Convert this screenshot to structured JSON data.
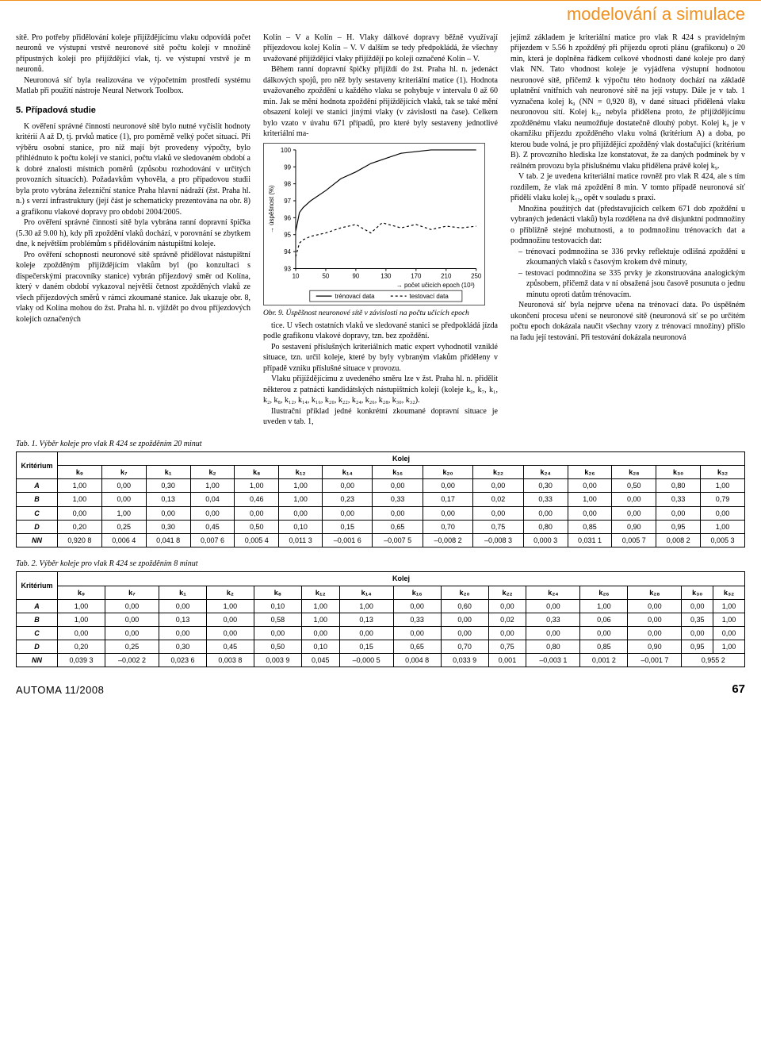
{
  "header": {
    "category": "modelování a simulace",
    "rule_color": "#f0911f"
  },
  "col1": {
    "p1": "sítě. Pro potřeby přidělování koleje přijíždějícímu vlaku odpovídá počet neuronů ve výstupní vrstvě neuronové sítě počtu kolejí v množině přípustných kolejí pro přijíždějící vlak, tj. ve výstupní vrstvě je m neuronů.",
    "p2": "Neuronová síť byla realizována ve výpočetním prostředí systému Matlab při použití nástroje Neural Network Toolbox.",
    "h3": "5. Případová studie",
    "p3": "K ověření správné činnosti neuronové sítě bylo nutné vyčíslit hodnoty kritérií A až D, tj. prvků matice (1), pro poměrně velký počet situací. Při výběru osobní stanice, pro niž mají být provedeny výpočty, bylo přihlédnuto k počtu kolejí ve stanici, počtu vlaků ve sledovaném období a k dobré znalosti místních poměrů (způsobu rozhodování v určitých provozních situacích). Požadavkům vyhověla, a pro případovou studii byla proto vybrána železniční stanice Praha hlavní nádraží (žst. Praha hl. n.) s verzí infrastruktury (její část je schematicky prezentována na obr. 8) a grafikonu vlakové dopravy pro období 2004/2005.",
    "p4": "Pro ověření správné činnosti sítě byla vybrána ranní dopravní špička (5.30 až 9.00 h), kdy při zpoždění vlaků dochází, v porovnání se zbytkem dne, k největším problémům s přidělováním nástupištní koleje.",
    "p5": "Pro ověření schopnosti neuronové sítě správně přidělovat nástupištní koleje zpožděným přijíždějícím vlakům byl (po konzultaci s dispečerskými pracovníky stanice) vybrán příjezdový směr od Kolína, který v daném období vykazoval největší četnost zpožděných vlaků ze všech příjezdových směrů v rámci zkoumané stanice. Jak ukazuje obr. 8, vlaky od Kolína mohou do žst. Praha hl. n. vjíždět po dvou příjezdových kolejích označených"
  },
  "col2": {
    "p1": "Kolín – V a Kolín – H. Vlaky dálkové dopravy běžně využívají příjezdovou kolej Kolín – V. V dalším se tedy předpokládá, že všechny uvažované přijíždějící vlaky přijíždějí po koleji označené Kolín – V.",
    "p2": "Během ranní dopravní špičky přijíždí do žst. Praha hl. n. jedenáct dálkových spojů, pro něž byly sestaveny kriteriální matice (1). Hodnota uvažovaného zpoždění u každého vlaku se pohybuje v intervalu 0 až 60 min. Jak se mění hodnota zpoždění přijíždějících vlaků, tak se také mění obsazení kolejí ve stanici jinými vlaky (v závislosti na čase). Celkem bylo vzato v úvahu 671 případů, pro které byly sestaveny jednotlivé kriteriální ma-",
    "p3": "tice. U všech ostatních vlaků ve sledované stanici se předpokládá jízda podle grafikonu vlakové dopravy, tzn. bez zpoždění.",
    "p4": "Po sestavení příslušných kriteriálních matic expert vyhodnotil vzniklé situace, tzn. určil koleje, které by byly vybraným vlakům přiděleny v případě vzniku příslušné situace v provozu.",
    "p5": "Vlaku přijíždějícímu z uvedeného směru lze v žst. Praha hl. n. přidělit některou z patnácti kandidátských nástupištních kolejí (koleje k₉, k₇, k₁, k₂, k₈, k₁₂, k₁₄, k₁₆, k₂₀, k₂₂, k₂₄, k₂₆, k₂₈, k₃₀, k₃₂).",
    "p6": "Ilustrační příklad jedné konkrétní zkoumané dopravní situace je uveden v tab. 1,"
  },
  "col3": {
    "p1": "jejímž základem je kriteriální matice pro vlak R 424 s pravidelným příjezdem v 5.56 h zpožděný při příjezdu oproti plánu (grafikonu) o 20 min, která je doplněna řádkem celkové vhodnosti dané koleje pro daný vlak NN. Tato vhodnost koleje je vyjádřena výstupní hodnotou neuronové sítě, přičemž k výpočtu této hodnoty dochází na základě uplatnění vnitřních vah neuronové sítě na její vstupy. Dále je v tab. 1 vyznačena kolej k₉ (NN = 0,920 8), v dané situaci přidělená vlaku neuronovou sítí. Kolej k₃₂ nebyla přidělena proto, že přijíždějícímu zpožděnému vlaku neumožňuje dostatečně dlouhý pobyt. Kolej k₉ je v okamžiku příjezdu zpožděného vlaku volná (kritérium A) a doba, po kterou bude volná, je pro přijíždějící zpožděný vlak dostačující (kritérium B). Z provozního hlediska lze konstatovat, že za daných podmínek by v reálném provozu byla příslušnému vlaku přidělena právě kolej k₉.",
    "p2": "V tab. 2 je uvedena kriteriální matice rovněž pro vlak R 424, ale s tím rozdílem, že vlak má zpoždění 8 min. V tomto případě neuronová síť přidělí vlaku kolej k₃₂, opět v souladu s praxí.",
    "p3": "Množina použitých dat (představujících celkem 671 dob zpoždění u vybraných jedenácti vlaků) byla rozdělena na dvě disjunktní podmnožiny o přibližně stejné mohutnosti, a to podmnožinu trénovacích dat a podmnožinu testovacích dat:",
    "li1": "trénovací podmnožina se 336 prvky reflektuje odlišná zpoždění u zkoumaných vlaků s časovým krokem dvě minuty,",
    "li2": "testovací podmnožina se 335 prvky je zkonstruována analogickým způsobem, přičemž data v ní obsažená jsou časově posunuta o jednu minutu oproti datům trénovacím.",
    "p4": "Neuronová síť byla nejprve učena na trénovací data. Po úspěšném ukončení procesu učení se neuronové sítě (neuronová síť se po určitém počtu epoch dokázala naučit všechny vzory z trénovací množiny) přišlo na řadu její testování. Při testování dokázala neuronová"
  },
  "chart": {
    "type": "line",
    "title": "",
    "ylabel": "úspěšnost (%)",
    "xlabel": "počet učicích epoch (10³)",
    "legend": {
      "train": "trénovací data",
      "test": "testovací data"
    },
    "xlim": [
      10,
      250
    ],
    "xticks": [
      10,
      50,
      90,
      130,
      170,
      210,
      250
    ],
    "ylim": [
      93,
      100
    ],
    "yticks": [
      93,
      94,
      95,
      96,
      97,
      98,
      99,
      100
    ],
    "series": {
      "train": {
        "color": "#000000",
        "dash": "none",
        "points": [
          [
            10,
            95.2
          ],
          [
            15,
            96.3
          ],
          [
            20,
            96.6
          ],
          [
            30,
            97.0
          ],
          [
            50,
            97.6
          ],
          [
            70,
            98.3
          ],
          [
            90,
            98.7
          ],
          [
            110,
            99.2
          ],
          [
            130,
            99.5
          ],
          [
            150,
            99.8
          ],
          [
            170,
            99.9
          ],
          [
            190,
            100
          ],
          [
            210,
            100
          ],
          [
            230,
            100
          ],
          [
            250,
            100
          ]
        ]
      },
      "test": {
        "color": "#000000",
        "dash": "3,3",
        "points": [
          [
            10,
            93.7
          ],
          [
            15,
            94.5
          ],
          [
            20,
            94.7
          ],
          [
            30,
            94.9
          ],
          [
            50,
            95.1
          ],
          [
            70,
            95.4
          ],
          [
            90,
            95.6
          ],
          [
            110,
            95.1
          ],
          [
            125,
            95.7
          ],
          [
            150,
            95.4
          ],
          [
            170,
            95.6
          ],
          [
            190,
            95.3
          ],
          [
            210,
            95.5
          ],
          [
            230,
            95.4
          ],
          [
            250,
            95.5
          ]
        ]
      }
    },
    "axis_color": "#000000",
    "grid_color": "#999999",
    "font_size": 8,
    "background_color": "#ffffff",
    "caption": "Obr. 9. Úspěšnost neuronové sítě v závislosti na počtu učicích epoch"
  },
  "table1": {
    "caption": "Tab. 1. Výběr koleje pro vlak R 424 se zpožděním 20 minut",
    "colhead_left": "Kritérium",
    "colhead_right": "Kolej",
    "columns": [
      "k₉",
      "k₇",
      "k₁",
      "k₂",
      "k₈",
      "k₁₂",
      "k₁₄",
      "k₁₆",
      "k₂₀",
      "k₂₂",
      "k₂₄",
      "k₂₆",
      "k₂₈",
      "k₃₀",
      "k₃₂"
    ],
    "rows": [
      {
        "label": "A",
        "vals": [
          "1,00",
          "0,00",
          "0,30",
          "1,00",
          "1,00",
          "1,00",
          "0,00",
          "0,00",
          "0,00",
          "0,00",
          "0,30",
          "0,00",
          "0,50",
          "0,80",
          "1,00"
        ]
      },
      {
        "label": "B",
        "vals": [
          "1,00",
          "0,00",
          "0,13",
          "0,04",
          "0,46",
          "1,00",
          "0,23",
          "0,33",
          "0,17",
          "0,02",
          "0,33",
          "1,00",
          "0,00",
          "0,33",
          "0,79"
        ]
      },
      {
        "label": "C",
        "vals": [
          "0,00",
          "1,00",
          "0,00",
          "0,00",
          "0,00",
          "0,00",
          "0,00",
          "0,00",
          "0,00",
          "0,00",
          "0,00",
          "0,00",
          "0,00",
          "0,00",
          "0,00"
        ]
      },
      {
        "label": "D",
        "vals": [
          "0,20",
          "0,25",
          "0,30",
          "0,45",
          "0,50",
          "0,10",
          "0,15",
          "0,65",
          "0,70",
          "0,75",
          "0,80",
          "0,85",
          "0,90",
          "0,95",
          "1,00"
        ]
      },
      {
        "label": "NN",
        "vals": [
          "0,920 8",
          "0,006 4",
          "0,041 8",
          "0,007 6",
          "0,005 4",
          "0,011 3",
          "–0,001 6",
          "–0,007 5",
          "–0,008 2",
          "–0,008 3",
          "0,000 3",
          "0,031 1",
          "0,005 7",
          "0,008 2",
          "0,005 3"
        ]
      }
    ]
  },
  "table2": {
    "caption": "Tab. 2. Výběr koleje pro vlak R 424 se zpožděním 8 minut",
    "colhead_left": "Kritérium",
    "colhead_right": "Kolej",
    "columns": [
      "k₉",
      "k₇",
      "k₁",
      "k₂",
      "k₈",
      "k₁₂",
      "k₁₄",
      "k₁₆",
      "k₂₀",
      "k₂₂",
      "k₂₄",
      "k₂₆",
      "k₂₈",
      "k₃₀",
      "k₃₂"
    ],
    "rows": [
      {
        "label": "A",
        "vals": [
          "1,00",
          "0,00",
          "0,00",
          "1,00",
          "0,10",
          "1,00",
          "1,00",
          "0,00",
          "0,60",
          "0,00",
          "0,00",
          "1,00",
          "0,00",
          "0,00",
          "1,00"
        ]
      },
      {
        "label": "B",
        "vals": [
          "1,00",
          "0,00",
          "0,13",
          "0,00",
          "0,58",
          "1,00",
          "0,13",
          "0,33",
          "0,00",
          "0,02",
          "0,33",
          "0,06",
          "0,00",
          "0,35",
          "1,00"
        ]
      },
      {
        "label": "C",
        "vals": [
          "0,00",
          "0,00",
          "0,00",
          "0,00",
          "0,00",
          "0,00",
          "0,00",
          "0,00",
          "0,00",
          "0,00",
          "0,00",
          "0,00",
          "0,00",
          "0,00",
          "0,00"
        ]
      },
      {
        "label": "D",
        "vals": [
          "0,20",
          "0,25",
          "0,30",
          "0,45",
          "0,50",
          "0,10",
          "0,15",
          "0,65",
          "0,70",
          "0,75",
          "0,80",
          "0,85",
          "0,90",
          "0,95",
          "1,00"
        ]
      },
      {
        "label": "NN",
        "vals": [
          "0,039 3",
          "–0,002 2",
          "0,023 6",
          "0,003 8",
          "0,003 9",
          "0,045",
          "–0,000 5",
          "0,004 8",
          "0,033 9",
          "0,001",
          "–0,003 1",
          "0,001 2",
          "–0,001 7",
          "0,955 2",
          ""
        ]
      }
    ],
    "nn_span_last": true
  },
  "footer": {
    "magazine": "AUTOMA  11/2008",
    "page": "67"
  }
}
